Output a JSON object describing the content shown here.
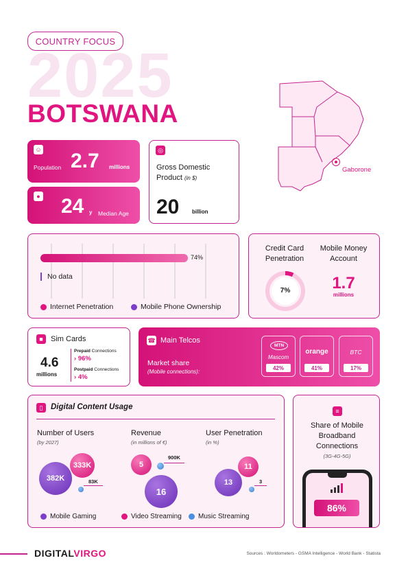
{
  "header": {
    "tag": "COUNTRY FOCUS",
    "year": "2025",
    "country": "BOTSWANA"
  },
  "population": {
    "label": "Population",
    "value": "2.7",
    "unit": "millions"
  },
  "median_age": {
    "value": "24",
    "unit": "y",
    "label": "Median Age"
  },
  "gdp": {
    "title": "Gross Domestic Product",
    "note": "(in $)",
    "value": "20",
    "unit": "billion"
  },
  "map": {
    "city": "Gaborone"
  },
  "penetration": {
    "bar_value_label": "74%",
    "bar_fraction": 0.74,
    "no_data": "No data",
    "legend": [
      "Internet Penetration",
      "Mobile Phone Ownership"
    ]
  },
  "credit_card": {
    "title": "Credit Card Penetration",
    "value": "7%",
    "fraction": 0.07
  },
  "mobile_money": {
    "title": "Mobile Money Account",
    "value": "1.7",
    "unit": "millions"
  },
  "sim_cards": {
    "title": "Sim Cards",
    "value": "4.6",
    "unit": "millions",
    "prepaid_label": "Prepaid",
    "prepaid_suffix": "Connections",
    "prepaid_value": "96%",
    "postpaid_label": "Postpaid",
    "postpaid_suffix": "Connections",
    "postpaid_value": "4%"
  },
  "telcos": {
    "title": "Main Telcos",
    "subtitle": "Market share",
    "note": "(Mobile connections):",
    "items": [
      {
        "logo": "MTN",
        "name": "Mascom",
        "share": "42%"
      },
      {
        "logo": "orange",
        "name": "",
        "share": "41%"
      },
      {
        "logo": "BTC",
        "name": "",
        "share": "17%"
      }
    ]
  },
  "digital_content": {
    "title": "Digital Content Usage",
    "users": {
      "title": "Number of Users",
      "note": "(by 2027)",
      "gaming": "382K",
      "video": "333K",
      "music": "83K"
    },
    "revenue": {
      "title": "Revenue",
      "note": "(in millions of €)",
      "gaming": "16",
      "video": "5",
      "music": "900K"
    },
    "penetration": {
      "title": "User Penetration",
      "note": "(in %)",
      "gaming": "13",
      "video": "11",
      "music": "3"
    },
    "legend": [
      "Mobile Gaming",
      "Video Streaming",
      "Music Streaming"
    ]
  },
  "broadband": {
    "title": "Share of Mobile Broadband Connections",
    "note": "(3G-4G-5G)",
    "value": "86%"
  },
  "footer": {
    "brand_a": "DIGITAL",
    "brand_b": "VIRGO",
    "sources": "Sources : Worldometers - GSMA Intelligence - World Bank - Statista"
  },
  "colors": {
    "accent": "#e0157f",
    "purple": "#7b3fc9",
    "blue": "#4a90e2"
  }
}
